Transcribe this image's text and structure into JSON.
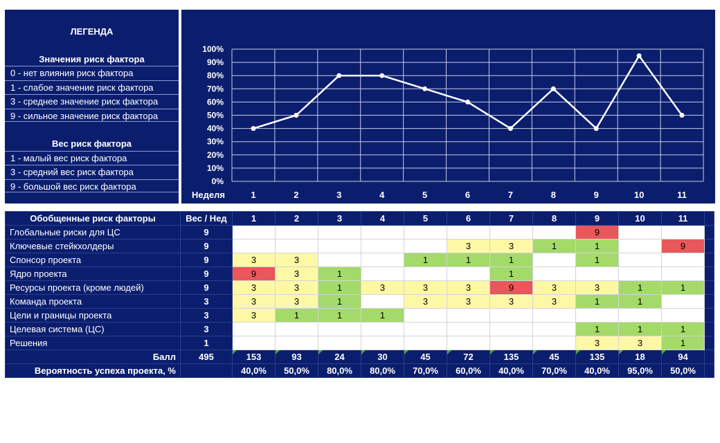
{
  "legend": {
    "title": "ЛЕГЕНДА",
    "values_heading": "Значения риск фактора",
    "values_items": [
      "0 - нет влияния риск фактора",
      "1 - слабое значение риск фактора",
      "3 - среднее значение риск фактора",
      "9 - сильное значение риск фактора"
    ],
    "weight_heading": "Вес риск фактора",
    "weight_items": [
      "1 - малый вес риск фактора",
      "3 - средний вес риск фактора",
      "9 - большой вес риск фактора"
    ]
  },
  "chart_data": {
    "type": "line",
    "x": [
      1,
      2,
      3,
      4,
      5,
      6,
      7,
      8,
      9,
      10,
      11
    ],
    "x_tick_labels": [
      "1",
      "2",
      "3",
      "4",
      "5",
      "6",
      "7",
      "8",
      "9",
      "10",
      "11"
    ],
    "xlabel": "Неделя",
    "values": [
      40,
      50,
      80,
      80,
      70,
      60,
      40,
      70,
      40,
      95,
      50
    ],
    "y_tick_labels": [
      "0%",
      "10%",
      "20%",
      "30%",
      "40%",
      "50%",
      "60%",
      "70%",
      "80%",
      "90%",
      "100%"
    ],
    "ylim": [
      0,
      100
    ],
    "grid": true,
    "line_color": "#ffffff",
    "background": "#0b1e6e"
  },
  "table": {
    "header_label": "Обобщенные риск факторы",
    "weight_header": "Вес / Нед",
    "weeks": [
      "1",
      "2",
      "3",
      "4",
      "5",
      "6",
      "7",
      "8",
      "9",
      "10",
      "11"
    ],
    "rows": [
      {
        "name": "Глобальные риски для ЦС",
        "weight": "9",
        "cells": [
          "",
          "",
          "",
          "",
          "",
          "",
          "",
          "",
          "9",
          "",
          ""
        ]
      },
      {
        "name": "Ключевые стейкхолдеры",
        "weight": "9",
        "cells": [
          "",
          "",
          "",
          "",
          "",
          "3",
          "3",
          "1",
          "1",
          "",
          "9"
        ]
      },
      {
        "name": "Спонсор проекта",
        "weight": "9",
        "cells": [
          "3",
          "3",
          "",
          "",
          "1",
          "1",
          "1",
          "",
          "1",
          "",
          ""
        ]
      },
      {
        "name": "Ядро проекта",
        "weight": "9",
        "cells": [
          "9",
          "3",
          "1",
          "",
          "",
          "",
          "1",
          "",
          "",
          "",
          ""
        ]
      },
      {
        "name": "Ресурсы проекта (кроме людей)",
        "weight": "9",
        "cells": [
          "3",
          "3",
          "1",
          "3",
          "3",
          "3",
          "9",
          "3",
          "3",
          "1",
          "1"
        ]
      },
      {
        "name": "Команда проекта",
        "weight": "3",
        "cells": [
          "3",
          "3",
          "1",
          "",
          "3",
          "3",
          "3",
          "3",
          "1",
          "1",
          ""
        ]
      },
      {
        "name": "Цели и границы проекта",
        "weight": "3",
        "cells": [
          "3",
          "1",
          "1",
          "1",
          "",
          "",
          "",
          "",
          "",
          "",
          ""
        ]
      },
      {
        "name": "Целевая система (ЦС)",
        "weight": "3",
        "cells": [
          "",
          "",
          "",
          "",
          "",
          "",
          "",
          "",
          "1",
          "1",
          "1"
        ]
      },
      {
        "name": "Решения",
        "weight": "1",
        "cells": [
          "",
          "",
          "",
          "",
          "",
          "",
          "",
          "",
          "3",
          "3",
          "1"
        ]
      }
    ],
    "score_label": "Балл",
    "score_total": "495",
    "scores": [
      "153",
      "93",
      "24",
      "30",
      "45",
      "72",
      "135",
      "45",
      "135",
      "18",
      "94"
    ],
    "prob_label": "Вероятность успеха проекта, %",
    "probabilities": [
      "40,0%",
      "50,0%",
      "80,0%",
      "80,0%",
      "70,0%",
      "60,0%",
      "40,0%",
      "70,0%",
      "40,0%",
      "95,0%",
      "50,0%"
    ]
  },
  "colors": {
    "navy": "#0b1e6e",
    "high": "#e8575a",
    "medium": "#fdf8a6",
    "low": "#a4da6a"
  }
}
